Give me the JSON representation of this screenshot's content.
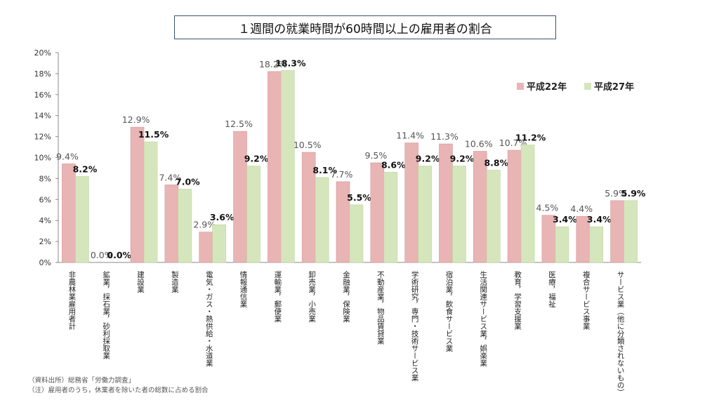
{
  "chart_data": {
    "type": "bar",
    "title": "１週間の就業時間が60時間以上の雇用者の割合",
    "categories": [
      "非農林業雇用者計",
      "鉱業，採石業，砂利採取業",
      "建設業",
      "製造業",
      "電気・ガス・熱供給・水道業",
      "情報通信業",
      "運輸業，郵便業",
      "卸売業，小売業",
      "金融業，保険業",
      "不動産業，物品賃貸業",
      "学術研究，専門・技術サービス業",
      "宿泊業，飲食サービス業",
      "生活関連サービス業，娯楽業",
      "教育，学習支援業",
      "医療，福祉",
      "複合サービス事業",
      "サービス業（他に分類されないもの）"
    ],
    "series": [
      {
        "name": "平成22年",
        "color": "#e8b4b4",
        "values": [
          9.4,
          0.0,
          12.9,
          7.4,
          2.9,
          12.5,
          18.2,
          10.5,
          7.7,
          9.5,
          11.4,
          11.3,
          10.6,
          10.7,
          4.5,
          4.4,
          5.9
        ],
        "labels": [
          "9.4%",
          "0.0%",
          "12.9%",
          "7.4%",
          "2.9%",
          "12.5%",
          "18.2%",
          "10.5%",
          "7.7%",
          "9.5%",
          "11.4%",
          "11.3%",
          "10.6%",
          "10.7%",
          "4.5%",
          "4.4%",
          "5.9%"
        ]
      },
      {
        "name": "平成27年",
        "color": "#d5e6bd",
        "values": [
          8.2,
          0.0,
          11.5,
          7.0,
          3.6,
          9.2,
          18.3,
          8.1,
          5.5,
          8.6,
          9.2,
          9.2,
          8.8,
          11.2,
          3.4,
          3.4,
          5.9
        ],
        "labels": [
          "8.2%",
          "0.0%",
          "11.5%",
          "7.0%",
          "3.6%",
          "9.2%",
          "18.3%",
          "8.1%",
          "5.5%",
          "8.6%",
          "9.2%",
          "9.2%",
          "8.8%",
          "11.2%",
          "3.4%",
          "3.4%",
          "5.9%"
        ]
      }
    ],
    "ylim": [
      0,
      20
    ],
    "yticks": [
      "0%",
      "2%",
      "4%",
      "6%",
      "8%",
      "10%",
      "12%",
      "14%",
      "16%",
      "18%",
      "20%"
    ],
    "legend_position": "top-right",
    "grid": false
  },
  "notes": {
    "source": "（資料出所）総務省「労働力調査」",
    "note": "（注）雇用者のうち，休業者を除いた者の総数に占める割合"
  }
}
